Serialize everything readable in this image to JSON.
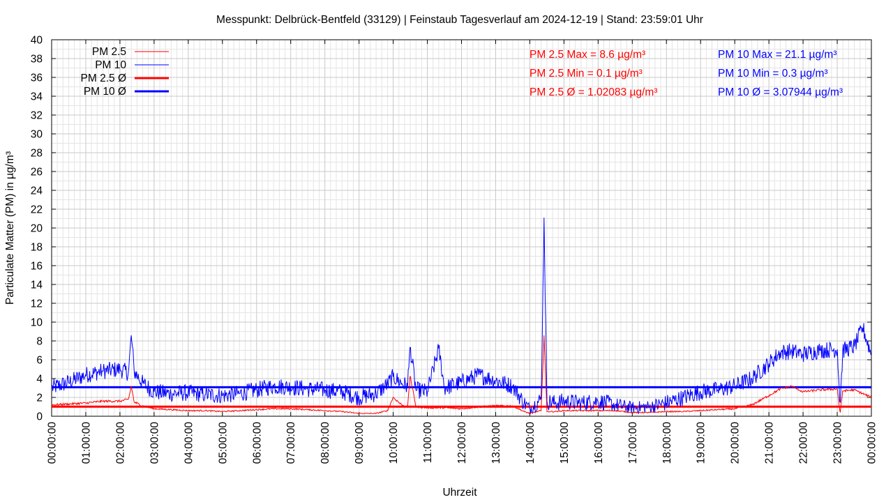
{
  "chart_data": {
    "type": "line",
    "title": "Messpunkt: Delbrück-Bentfeld (33129) | Feinstaub Tagesverlauf am 2024-12-19 | Stand: 23:59:01 Uhr",
    "xlabel": "Uhrzeit",
    "ylabel": "Particulate Matter (PM) in µg/m³",
    "xlim": [
      "00:00:00",
      "24:00:00"
    ],
    "ylim": [
      0,
      40
    ],
    "grid": true,
    "legend_position": "top-left",
    "x_tick_labels": [
      "00:00:00",
      "01:00:00",
      "02:00:00",
      "03:00:00",
      "04:00:00",
      "05:00:00",
      "06:00:00",
      "07:00:00",
      "08:00:00",
      "09:00:00",
      "10:00:00",
      "11:00:00",
      "12:00:00",
      "13:00:00",
      "14:00:00",
      "15:00:00",
      "16:00:00",
      "17:00:00",
      "18:00:00",
      "19:00:00",
      "20:00:00",
      "21:00:00",
      "22:00:00",
      "23:00:00",
      "00:00:00"
    ],
    "y_tick_labels": [
      "0",
      "2",
      "4",
      "6",
      "8",
      "10",
      "12",
      "14",
      "16",
      "18",
      "20",
      "22",
      "24",
      "26",
      "28",
      "30",
      "32",
      "34",
      "36",
      "38",
      "40"
    ],
    "colors": {
      "pm25": "#ff0000",
      "pm10": "#0000ff"
    },
    "series": [
      {
        "name": "PM 2.5",
        "color": "#ff0000",
        "x": [
          "00:00",
          "00:30",
          "01:00",
          "01:30",
          "02:00",
          "02:15",
          "02:20",
          "02:25",
          "02:40",
          "03:00",
          "03:30",
          "04:00",
          "04:30",
          "05:00",
          "05:30",
          "06:00",
          "06:30",
          "07:00",
          "07:30",
          "08:00",
          "08:30",
          "09:00",
          "09:30",
          "09:50",
          "10:00",
          "10:15",
          "10:25",
          "10:30",
          "10:40",
          "11:00",
          "11:30",
          "12:00",
          "12:30",
          "13:00",
          "13:30",
          "13:50",
          "14:00",
          "14:20",
          "14:25",
          "14:30",
          "14:45",
          "15:00",
          "15:30",
          "16:00",
          "16:30",
          "17:00",
          "17:30",
          "18:00",
          "18:30",
          "19:00",
          "19:30",
          "20:00",
          "20:30",
          "21:00",
          "21:20",
          "21:40",
          "22:00",
          "22:30",
          "23:00",
          "23:05",
          "23:10",
          "23:30",
          "24:00"
        ],
        "y": [
          1.2,
          1.3,
          1.4,
          1.6,
          1.6,
          1.8,
          3.2,
          1.5,
          1.1,
          0.8,
          0.7,
          0.6,
          0.6,
          0.5,
          0.6,
          0.7,
          0.8,
          0.8,
          0.7,
          0.6,
          0.5,
          0.3,
          0.3,
          0.6,
          2.0,
          1.2,
          1.0,
          4.2,
          1.0,
          0.9,
          0.9,
          0.8,
          1.0,
          1.1,
          1.1,
          0.5,
          0.3,
          0.6,
          8.6,
          0.5,
          0.5,
          0.6,
          0.6,
          0.6,
          0.6,
          0.4,
          0.4,
          0.5,
          0.5,
          0.6,
          0.7,
          0.8,
          1.2,
          2.2,
          2.9,
          3.2,
          2.6,
          2.8,
          2.9,
          0.4,
          2.7,
          2.8,
          2.0
        ]
      },
      {
        "name": "PM 10",
        "color": "#0000ff",
        "x": [
          "00:00",
          "00:30",
          "01:00",
          "01:30",
          "02:00",
          "02:15",
          "02:20",
          "02:25",
          "02:40",
          "03:00",
          "03:30",
          "04:00",
          "04:30",
          "05:00",
          "05:30",
          "06:00",
          "06:30",
          "07:00",
          "07:30",
          "08:00",
          "08:30",
          "09:00",
          "09:30",
          "09:50",
          "10:00",
          "10:15",
          "10:25",
          "10:30",
          "10:40",
          "11:00",
          "11:20",
          "11:30",
          "12:00",
          "12:30",
          "13:00",
          "13:30",
          "13:50",
          "14:00",
          "14:20",
          "14:25",
          "14:30",
          "14:45",
          "15:00",
          "15:30",
          "16:00",
          "16:30",
          "17:00",
          "17:30",
          "18:00",
          "18:30",
          "19:00",
          "19:30",
          "20:00",
          "20:30",
          "21:00",
          "21:20",
          "21:40",
          "22:00",
          "22:30",
          "23:00",
          "23:05",
          "23:10",
          "23:30",
          "23:45",
          "24:00"
        ],
        "y": [
          3.0,
          3.6,
          4.4,
          4.8,
          5.0,
          4.6,
          8.6,
          4.8,
          3.5,
          2.6,
          2.4,
          2.5,
          2.3,
          2.2,
          2.4,
          2.8,
          3.2,
          3.1,
          2.9,
          2.8,
          2.6,
          2.0,
          2.4,
          3.4,
          4.2,
          3.5,
          3.2,
          7.3,
          2.8,
          2.6,
          7.2,
          3.0,
          3.6,
          4.4,
          3.8,
          3.2,
          1.4,
          0.8,
          1.8,
          21.1,
          1.6,
          1.4,
          1.6,
          1.4,
          1.6,
          1.2,
          0.9,
          1.0,
          1.4,
          2.0,
          2.6,
          2.8,
          3.2,
          4.0,
          5.6,
          6.8,
          6.9,
          6.6,
          7.0,
          7.1,
          1.5,
          7.0,
          7.4,
          9.4,
          6.5
        ]
      },
      {
        "name": "PM 2.5 Ø",
        "color": "#ff0000",
        "value": 1.02083
      },
      {
        "name": "PM 10 Ø",
        "color": "#0000ff",
        "value": 3.07944
      }
    ],
    "annotations": {
      "pm25_max": "PM 2.5 Max = 8.6 µg/m³",
      "pm25_min": "PM 2.5 Min = 0.1 µg/m³",
      "pm25_avg": "PM 2.5 Ø = 1.02083 µg/m³",
      "pm10_max": "PM 10 Max = 21.1 µg/m³",
      "pm10_min": "PM 10 Min = 0.3 µg/m³",
      "pm10_avg": "PM 10 Ø = 3.07944 µg/m³"
    }
  }
}
